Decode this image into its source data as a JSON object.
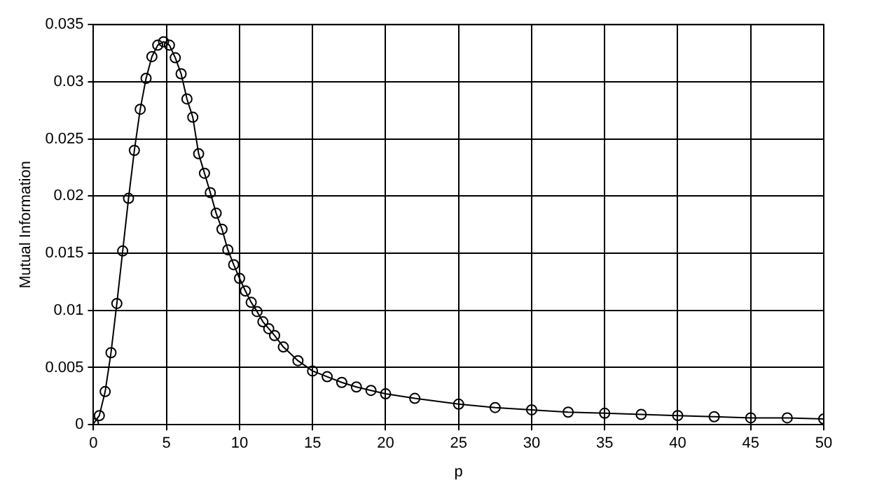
{
  "chart_data": {
    "type": "line",
    "xlabel": "p",
    "ylabel": "Mutual Information",
    "x": [
      0,
      0.4,
      0.8,
      1.2,
      1.6,
      2.0,
      2.4,
      2.8,
      3.2,
      3.6,
      4.0,
      4.4,
      4.8,
      5.2,
      5.6,
      6.0,
      6.4,
      6.8,
      7.2,
      7.6,
      8.0,
      8.4,
      8.8,
      9.2,
      9.6,
      10.0,
      10.4,
      10.8,
      11.2,
      11.6,
      12.0,
      12.4,
      13,
      14,
      15,
      16,
      17,
      18,
      19,
      20,
      22,
      25,
      27.5,
      30,
      32.5,
      35,
      37.5,
      40,
      42.5,
      45,
      47.5,
      50
    ],
    "series": [
      {
        "color": "#000000",
        "values": [
          0.0001,
          0.0008,
          0.0029,
          0.0063,
          0.0106,
          0.0152,
          0.0198,
          0.024,
          0.0276,
          0.0303,
          0.0322,
          0.0332,
          0.0335,
          0.0332,
          0.0321,
          0.0307,
          0.0285,
          0.0269,
          0.0237,
          0.022,
          0.0203,
          0.0185,
          0.0171,
          0.0153,
          0.014,
          0.0128,
          0.0117,
          0.0107,
          0.0099,
          0.009,
          0.0084,
          0.0078,
          0.0068,
          0.0056,
          0.0047,
          0.0042,
          0.0037,
          0.0033,
          0.003,
          0.0027,
          0.0023,
          0.0018,
          0.0015,
          0.0013,
          0.0011,
          0.001,
          0.0009,
          0.0008,
          0.0007,
          0.0006,
          0.0006,
          0.0005
        ]
      }
    ],
    "xlim": [
      0,
      50
    ],
    "xticks": [
      0,
      5,
      10,
      15,
      20,
      25,
      30,
      35,
      40,
      45,
      50
    ],
    "ylim": [
      0,
      0.035
    ],
    "yticks": [
      0,
      0.005,
      0.01,
      0.015,
      0.02,
      0.025,
      0.03,
      0.035
    ],
    "grid": true,
    "marker": "circle",
    "line_style": "solid",
    "legend": false
  }
}
